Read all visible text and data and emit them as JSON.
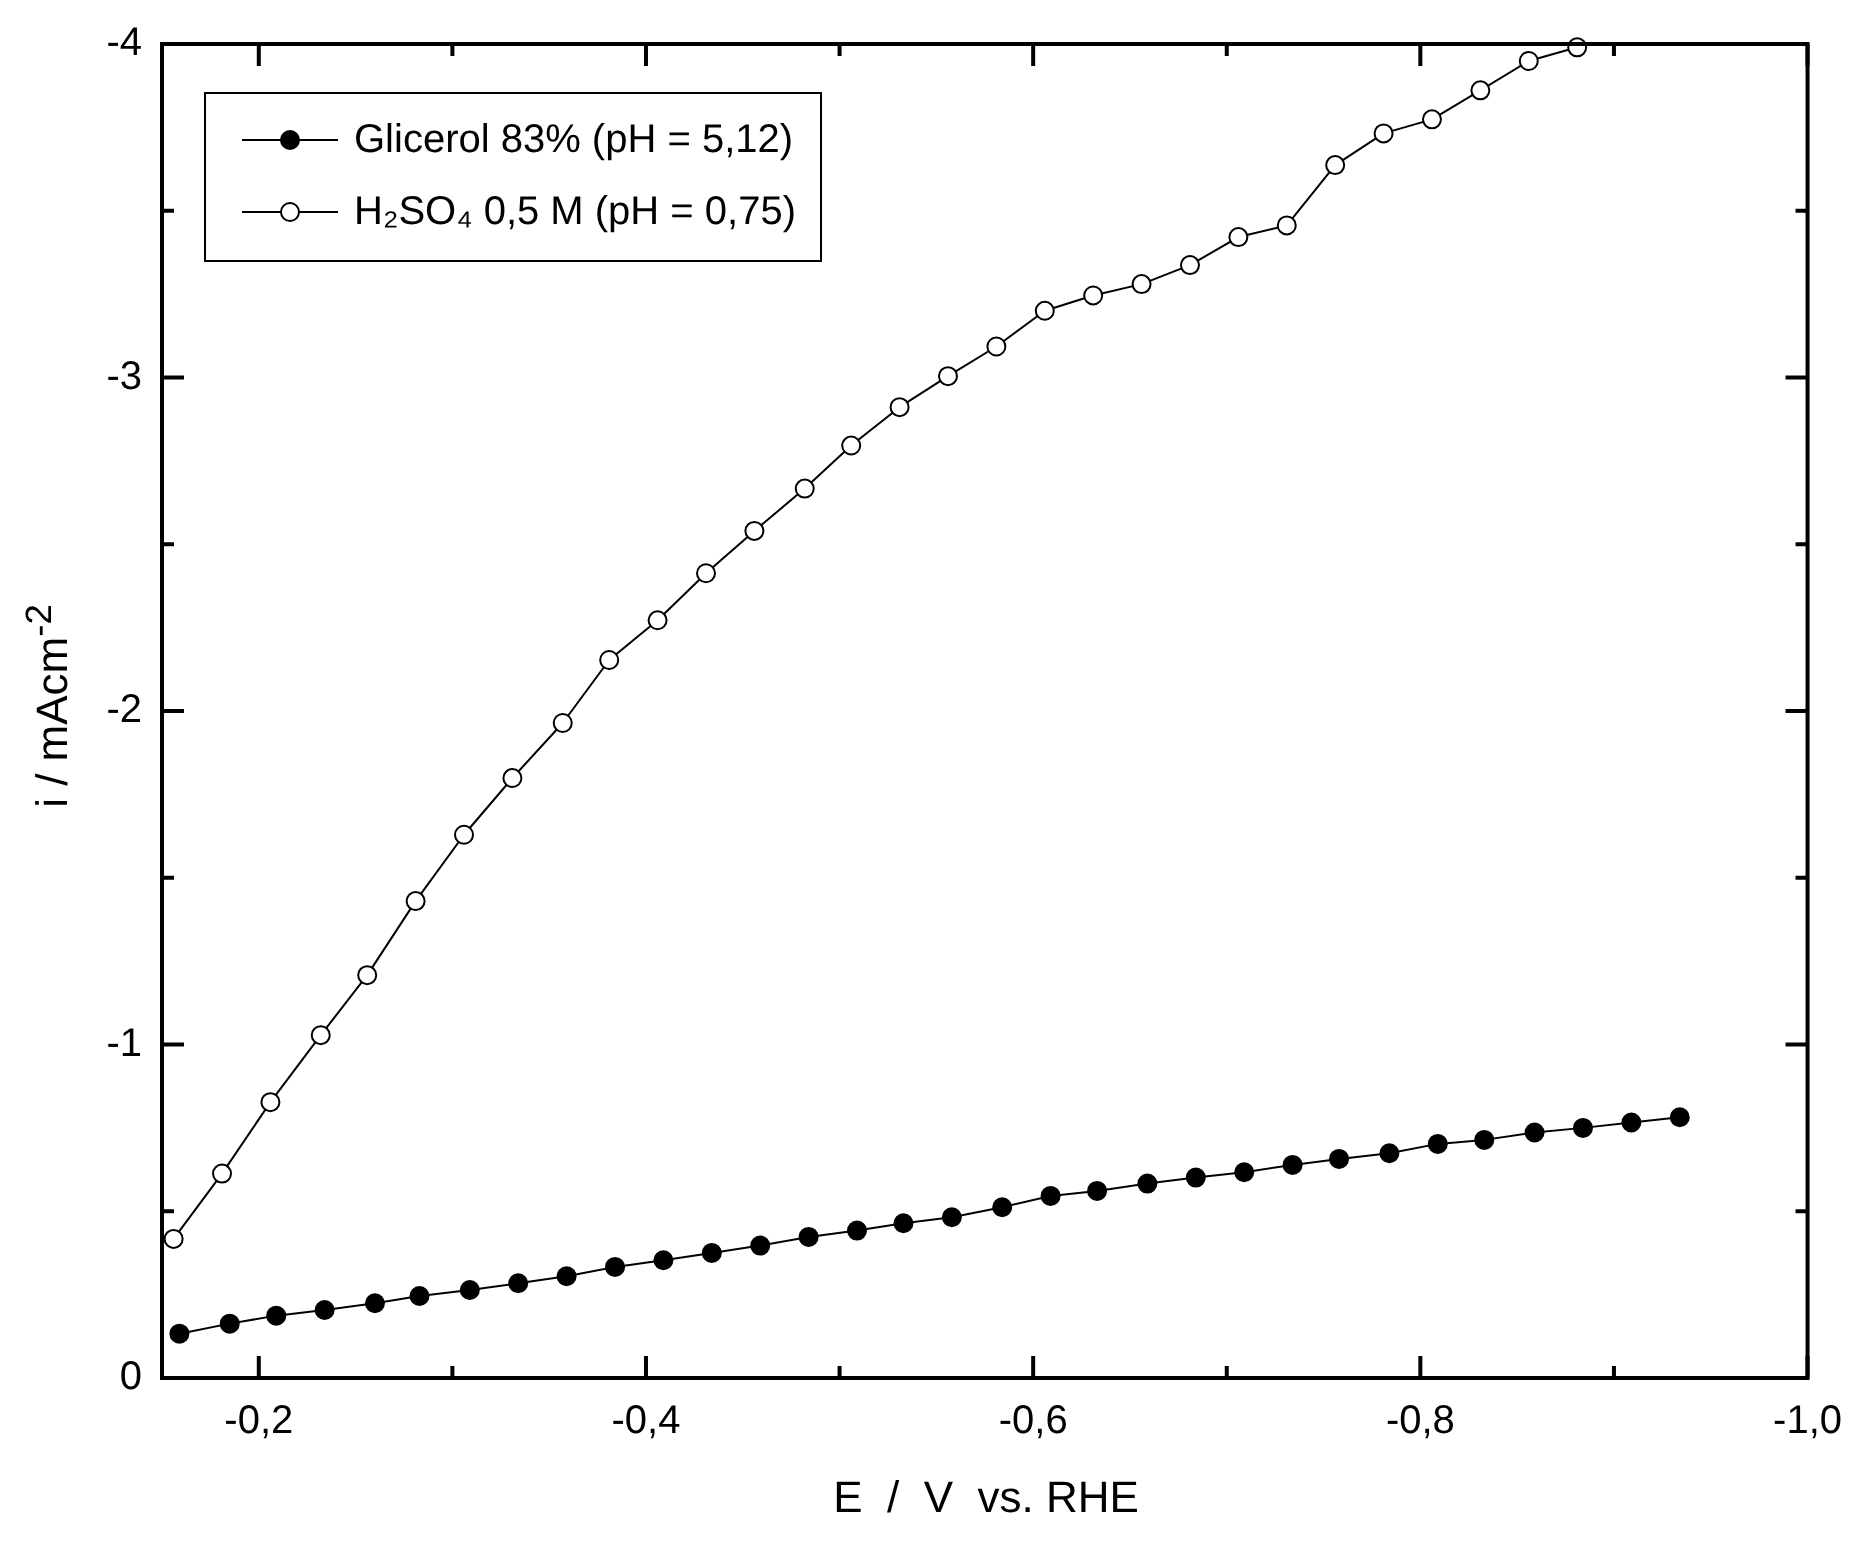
{
  "chart_data": {
    "type": "line",
    "xlabel": "E  /  V  vs. RHE",
    "ylabel": "i / mAcm$^{-2}$",
    "xlim": [
      -0.15,
      -1.0
    ],
    "ylim": [
      0,
      -4
    ],
    "xticks": [
      {
        "value": -0.2,
        "label": "-0,2"
      },
      {
        "value": -0.3,
        "label": null
      },
      {
        "value": -0.4,
        "label": "-0,4"
      },
      {
        "value": -0.5,
        "label": null
      },
      {
        "value": -0.6,
        "label": "-0,6"
      },
      {
        "value": -0.7,
        "label": null
      },
      {
        "value": -0.8,
        "label": "-0,8"
      },
      {
        "value": -0.9,
        "label": null
      },
      {
        "value": -1.0,
        "label": "-1,0"
      }
    ],
    "yticks": [
      0,
      {
        "value": -0.5,
        "label": null
      },
      -1,
      {
        "value": -1.5,
        "label": null
      },
      -2,
      {
        "value": -2.5,
        "label": null
      },
      -3,
      {
        "value": -3.5,
        "label": null
      },
      -4
    ],
    "grid": false,
    "legend": "top left",
    "marker": "circle",
    "line_style": "solid",
    "series": [
      {
        "name": "Glicerol 83% (pH = 5,12)",
        "color": "#000000",
        "x": [
          -0.159,
          -0.185,
          -0.209,
          -0.234,
          -0.26,
          -0.283,
          -0.309,
          -0.334,
          -0.359,
          -0.384,
          -0.409,
          -0.434,
          -0.459,
          -0.484,
          -0.509,
          -0.533,
          -0.558,
          -0.584,
          -0.609,
          -0.633,
          -0.659,
          -0.684,
          -0.709,
          -0.734,
          -0.758,
          -0.784,
          -0.809,
          -0.833,
          -0.859,
          -0.884,
          -0.909,
          -0.934
        ],
        "values": [
          -0.133,
          -0.163,
          -0.187,
          -0.204,
          -0.224,
          -0.246,
          -0.264,
          -0.284,
          -0.305,
          -0.333,
          -0.353,
          -0.375,
          -0.397,
          -0.423,
          -0.442,
          -0.464,
          -0.482,
          -0.512,
          -0.546,
          -0.561,
          -0.583,
          -0.601,
          -0.617,
          -0.639,
          -0.657,
          -0.674,
          -0.702,
          -0.714,
          -0.736,
          -0.75,
          -0.766,
          -0.782
        ]
      },
      {
        "name": "H₂SO₄ 0,5 M (pH = 0,75)",
        "color": "#000000",
        "x": [
          -0.156,
          -0.181,
          -0.206,
          -0.232,
          -0.256,
          -0.281,
          -0.306,
          -0.331,
          -0.357,
          -0.381,
          -0.406,
          -0.431,
          -0.456,
          -0.482,
          -0.506,
          -0.531,
          -0.556,
          -0.581,
          -0.606,
          -0.631,
          -0.656,
          -0.681,
          -0.706,
          -0.731,
          -0.756,
          -0.781,
          -0.806,
          -0.831,
          -0.856,
          -0.881
        ],
        "values": [
          -0.417,
          -0.613,
          -0.827,
          -1.028,
          -1.208,
          -1.43,
          -1.629,
          -1.799,
          -1.964,
          -2.153,
          -2.272,
          -2.413,
          -2.54,
          -2.667,
          -2.796,
          -2.911,
          -3.004,
          -3.093,
          -3.2,
          -3.246,
          -3.28,
          -3.337,
          -3.421,
          -3.456,
          -3.637,
          -3.732,
          -3.774,
          -3.861,
          -3.949,
          -3.99
        ]
      }
    ]
  }
}
